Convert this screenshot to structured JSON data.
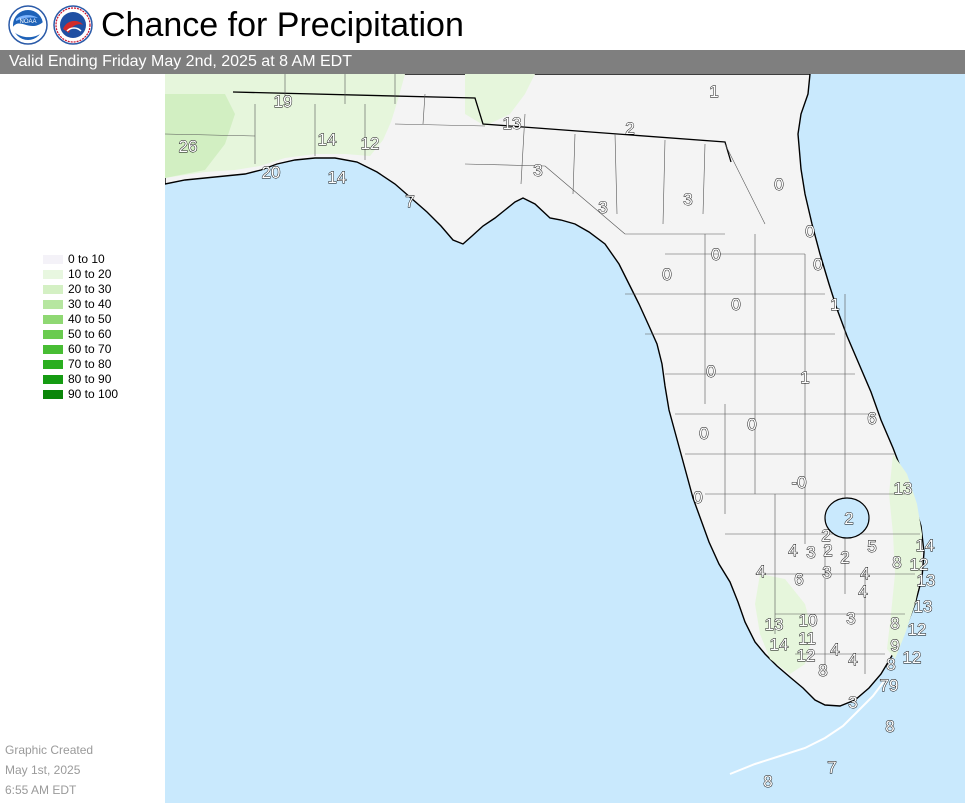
{
  "header": {
    "title": "Chance for Precipitation",
    "noaa_logo_text": "NOAA",
    "nws_logo_text": "NATIONAL WEATHER SERVICE"
  },
  "valid_text": "Valid Ending Friday May 2nd, 2025 at 8 AM EDT",
  "legend": {
    "items": [
      {
        "label": "0 to 10",
        "color": "#f4f2f8"
      },
      {
        "label": "10 to 20",
        "color": "#e8f7e0"
      },
      {
        "label": "20 to 30",
        "color": "#d4f0c4"
      },
      {
        "label": "30 to 40",
        "color": "#b6e6a0"
      },
      {
        "label": "40 to 50",
        "color": "#8fd873"
      },
      {
        "label": "50 to 60",
        "color": "#6acb4f"
      },
      {
        "label": "60 to 70",
        "color": "#48bd34"
      },
      {
        "label": "70 to 80",
        "color": "#2aae1f"
      },
      {
        "label": "80 to 90",
        "color": "#159b12"
      },
      {
        "label": "90 to 100",
        "color": "#0a8609"
      }
    ]
  },
  "created": {
    "line1": "Graphic Created",
    "line2": "May 1st, 2025",
    "line3": "6:55 AM EDT"
  },
  "map_colors": {
    "water": "#c9e9fd",
    "land": "#f4f4f4",
    "outside": "#ffffff"
  },
  "point_values": {
    "v19": "19",
    "v13a": "13",
    "v1a": "1",
    "v2a": "2",
    "v26": "26",
    "v14a": "14",
    "v12a": "12",
    "v20": "20",
    "v14b": "14",
    "v7a": "7",
    "v3a": "3",
    "v3b": "3",
    "v3c": "3",
    "v0a": "0",
    "v0b": "0",
    "v0c": "0",
    "v0d": "0",
    "v0e": "0",
    "v1b": "1",
    "v0f": "0",
    "v1c": "1",
    "v6a": "6",
    "v0g": "0",
    "v0h": "0",
    "vneg0": "-0",
    "v0i": "0",
    "v13b": "13",
    "v2b": "2",
    "v2c": "2",
    "v2d": "2",
    "v2e": "2",
    "v4a": "4",
    "v3d": "3",
    "v5": "5",
    "v14c": "14",
    "v8a": "8",
    "v12b": "12",
    "v4b": "4",
    "v6b": "6",
    "v3e": "3",
    "v4c": "4",
    "v13c": "13",
    "v4d": "4",
    "v13d": "13",
    "v3f": "3",
    "v10": "10",
    "v13e": "13",
    "v8b": "8",
    "v12c": "12",
    "v14d": "14",
    "v11": "11",
    "v9": "9",
    "v12d": "12",
    "v4e": "4",
    "v4f": "4",
    "v8c": "8",
    "v12e": "12",
    "v8d": "8",
    "v79": "79",
    "v3g": "3",
    "v8e": "8",
    "v7b": "7",
    "v8f": "8"
  }
}
